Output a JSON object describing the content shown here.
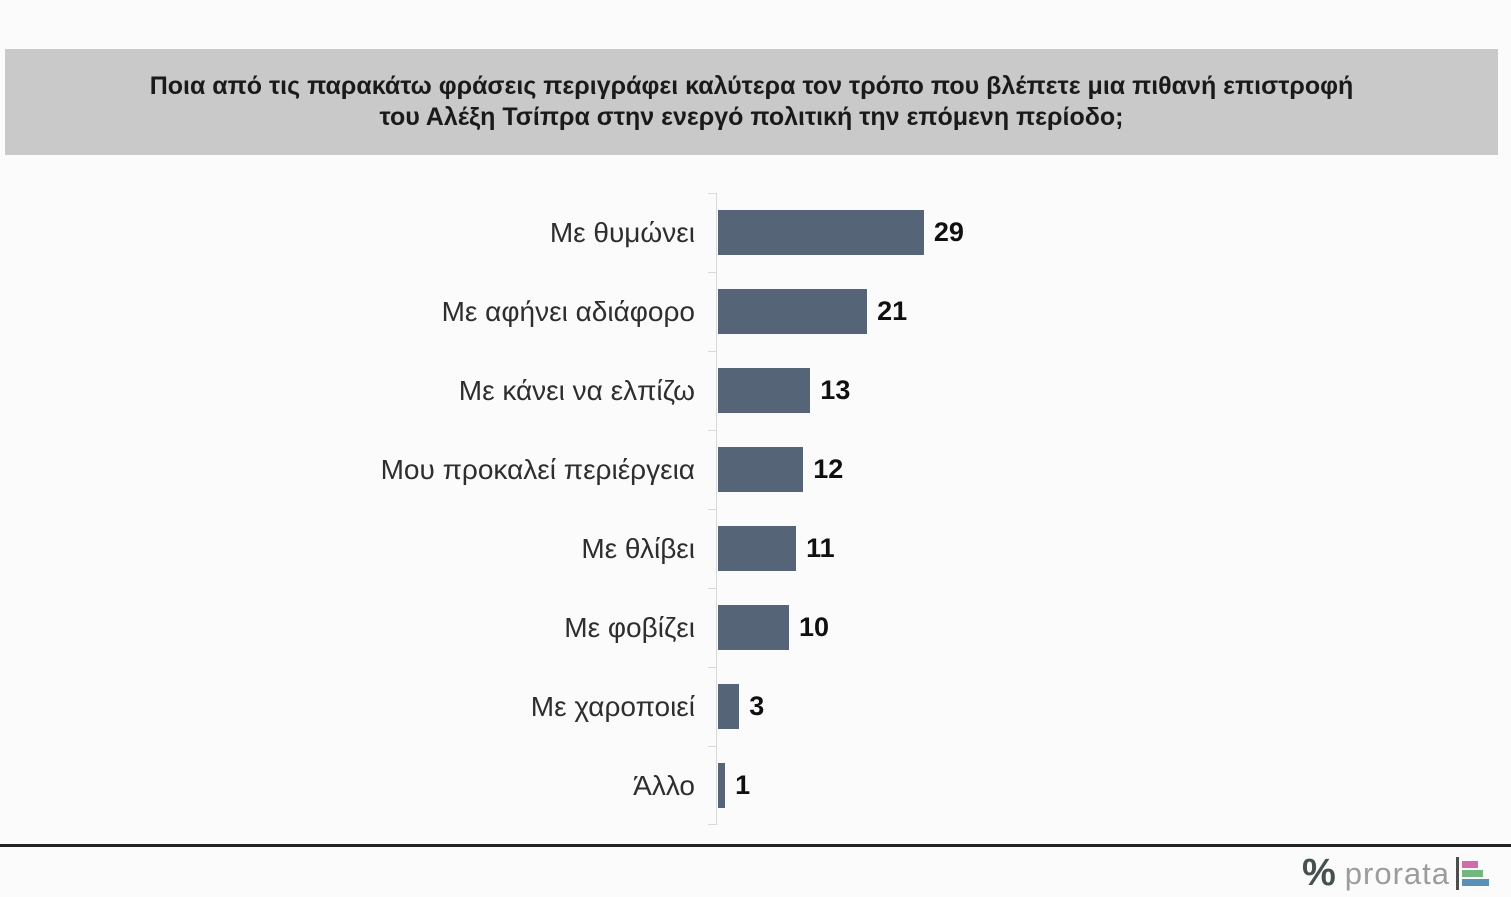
{
  "title": {
    "line1": "Ποια από τις παρακάτω φράσεις περιγράφει καλύτερα τον τρόπο που βλέπετε μια πιθανή επιστροφή",
    "line2": "του Αλέξη Τσίπρα στην ενεργό πολιτική την επόμενη περίοδο;"
  },
  "chart_data": {
    "type": "bar",
    "orientation": "horizontal",
    "title": "Ποια από τις παρακάτω φράσεις περιγράφει καλύτερα τον τρόπο που βλέπετε μια πιθανή επιστροφή του Αλέξη Τσίπρα στην ενεργό πολιτική την επόμενη περίοδο;",
    "categories": [
      "Με θυμώνει",
      "Με αφήνει αδιάφορο",
      "Με κάνει να ελπίζω",
      "Μου προκαλεί περιέργεια",
      "Με θλίβει",
      "Με φοβίζει",
      "Με χαροποιεί",
      "Άλλο"
    ],
    "values": [
      29,
      21,
      13,
      12,
      11,
      10,
      3,
      1
    ],
    "xlabel": "",
    "ylabel": "",
    "xlim": [
      0,
      30
    ],
    "grid": false,
    "data_labels": true,
    "legend": "none",
    "bar_color": "#566477",
    "axis_color": "#d9d9d9"
  },
  "colors": {
    "background": "#fbfbfb",
    "title_band_bg": "#c9c9c9",
    "title_text": "#1a1a1a",
    "category_label": "#2e2e2e",
    "value_label": "#101010",
    "footer_line": "#222222"
  },
  "footer": {
    "logo": {
      "percent_symbol": "%",
      "brand_text": "prorata",
      "bar_colors": [
        "#d06ca7",
        "#72b77e",
        "#5a8fb7"
      ]
    }
  }
}
